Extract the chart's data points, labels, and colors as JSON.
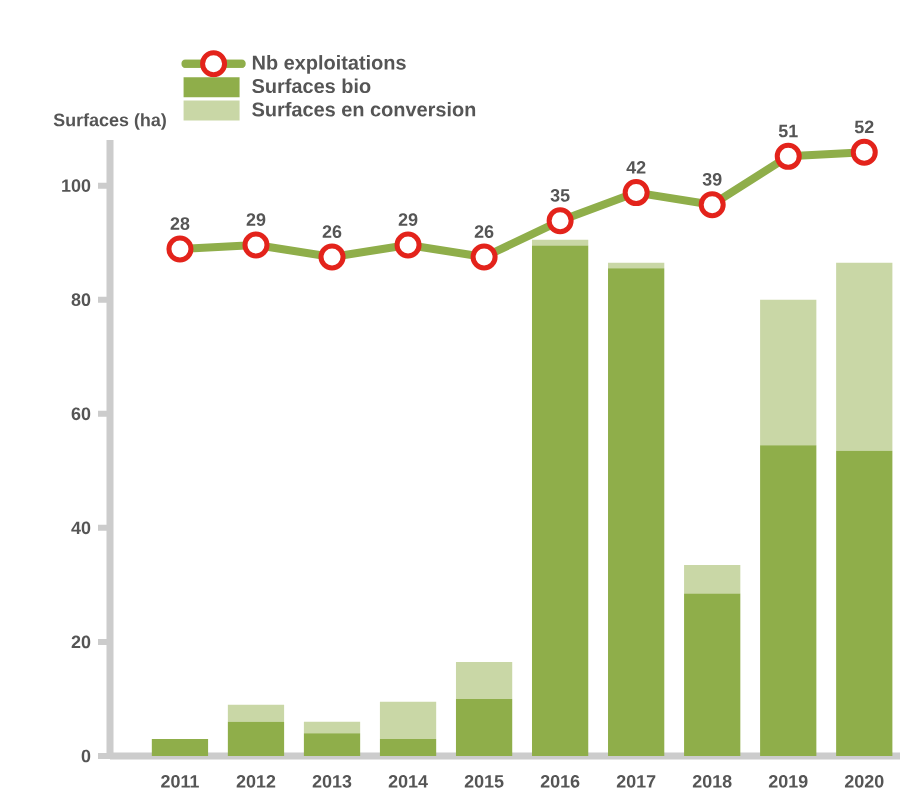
{
  "chart_data": {
    "type": "bar",
    "stacked": true,
    "ylabel": "Surfaces (ha)",
    "categories": [
      "2011",
      "2012",
      "2013",
      "2014",
      "2015",
      "2016",
      "2017",
      "2018",
      "2019",
      "2020"
    ],
    "ylim": [
      0,
      108
    ],
    "yticks": [
      0,
      20,
      40,
      60,
      80,
      100
    ],
    "legend": "top",
    "grid": false,
    "series": [
      {
        "name": "Surfaces bio",
        "color": "#8fae4a",
        "values": [
          3,
          6,
          4,
          3,
          10,
          89.5,
          85.5,
          28.5,
          54.5,
          53.5
        ]
      },
      {
        "name": "Surfaces en conversion",
        "color": "#c9d7a6",
        "values": [
          0,
          3,
          2,
          6.5,
          6.5,
          1,
          1,
          5,
          25.5,
          33
        ]
      },
      {
        "name": "Nb exploitations",
        "type": "line",
        "axis": "y2",
        "color": "#8fae4a",
        "marker": "circle",
        "line_style": "solid",
        "data_labels": true,
        "values": [
          28,
          29,
          26,
          29,
          26,
          35,
          42,
          39,
          51,
          52
        ]
      }
    ]
  }
}
